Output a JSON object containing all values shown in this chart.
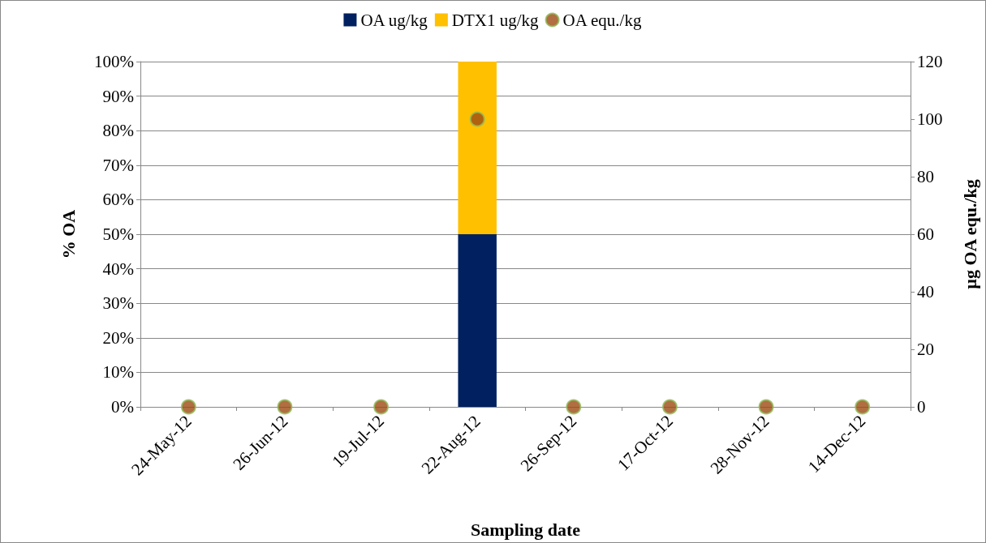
{
  "chart_data": {
    "type": "bar",
    "stacked": true,
    "xlabel": "Sampling date",
    "ylabel": "% OA",
    "y2label": "µg OA equ./kg",
    "categories": [
      "24-May-12",
      "26-Jun-12",
      "19-Jul-12",
      "22-Aug-12",
      "26-Sep-12",
      "17-Oct-12",
      "28-Nov-12",
      "14-Dec-12"
    ],
    "series": [
      {
        "name": "OA ug/kg",
        "color": "#002060",
        "values": [
          0,
          0,
          0,
          50,
          0,
          0,
          0,
          0
        ]
      },
      {
        "name": "DTX1 ug/kg",
        "color": "#ffc000",
        "values": [
          0,
          0,
          0,
          50,
          0,
          0,
          0,
          0
        ]
      },
      {
        "name": "OA equ./kg",
        "type": "scatter",
        "axis": "y2",
        "color": "#9e4a12",
        "values": [
          0,
          0,
          0,
          100,
          0,
          0,
          0,
          0
        ]
      }
    ],
    "ylim": [
      0,
      100
    ],
    "yticks": [
      {
        "value": 0,
        "label": "0%"
      },
      {
        "value": 10,
        "label": "10%"
      },
      {
        "value": 20,
        "label": "20%"
      },
      {
        "value": 30,
        "label": "30%"
      },
      {
        "value": 40,
        "label": "40%"
      },
      {
        "value": 50,
        "label": "50%"
      },
      {
        "value": 60,
        "label": "60%"
      },
      {
        "value": 70,
        "label": "70%"
      },
      {
        "value": 80,
        "label": "80%"
      },
      {
        "value": 90,
        "label": "90%"
      },
      {
        "value": 100,
        "label": "100%"
      }
    ],
    "y2lim": [
      0,
      120
    ],
    "y2ticks": [
      0,
      20,
      40,
      60,
      80,
      100,
      120
    ],
    "grid": "y",
    "legend": "top",
    "marker": "circle"
  }
}
